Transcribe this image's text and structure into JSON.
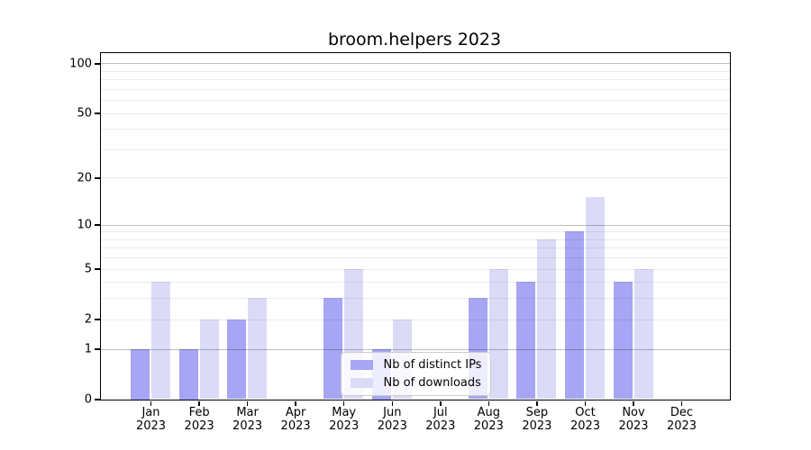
{
  "chart_data": {
    "type": "bar",
    "title": "broom.helpers 2023",
    "categories": [
      "Jan 2023",
      "Feb 2023",
      "Mar 2023",
      "Apr 2023",
      "May 2023",
      "Jun 2023",
      "Jul 2023",
      "Aug 2023",
      "Sep 2023",
      "Oct 2023",
      "Nov 2023",
      "Dec 2023"
    ],
    "series": [
      {
        "name": "Nb of distinct IPs",
        "color": "#a6a6f4",
        "values": [
          1,
          1,
          2,
          0,
          3,
          1,
          0,
          3,
          4,
          9,
          4,
          0
        ]
      },
      {
        "name": "Nb of downloads",
        "color": "#dbdbf8",
        "values": [
          4,
          2,
          3,
          0,
          5,
          2,
          0,
          5,
          8,
          15,
          5,
          0
        ]
      }
    ],
    "xlabel": "",
    "ylabel": "",
    "y_scale": "log1p",
    "y_tick_values": [
      0,
      1,
      2,
      5,
      10,
      20,
      50,
      100
    ],
    "y_major_gridlines": [
      1,
      10,
      100
    ],
    "y_minor_gridlines": [
      2,
      3,
      4,
      5,
      6,
      7,
      8,
      9,
      20,
      30,
      40,
      50,
      60,
      70,
      80,
      90
    ],
    "ylim": [
      0,
      116
    ],
    "grid": "horizontal",
    "legend": {
      "position": "inside-bottom-center"
    }
  }
}
